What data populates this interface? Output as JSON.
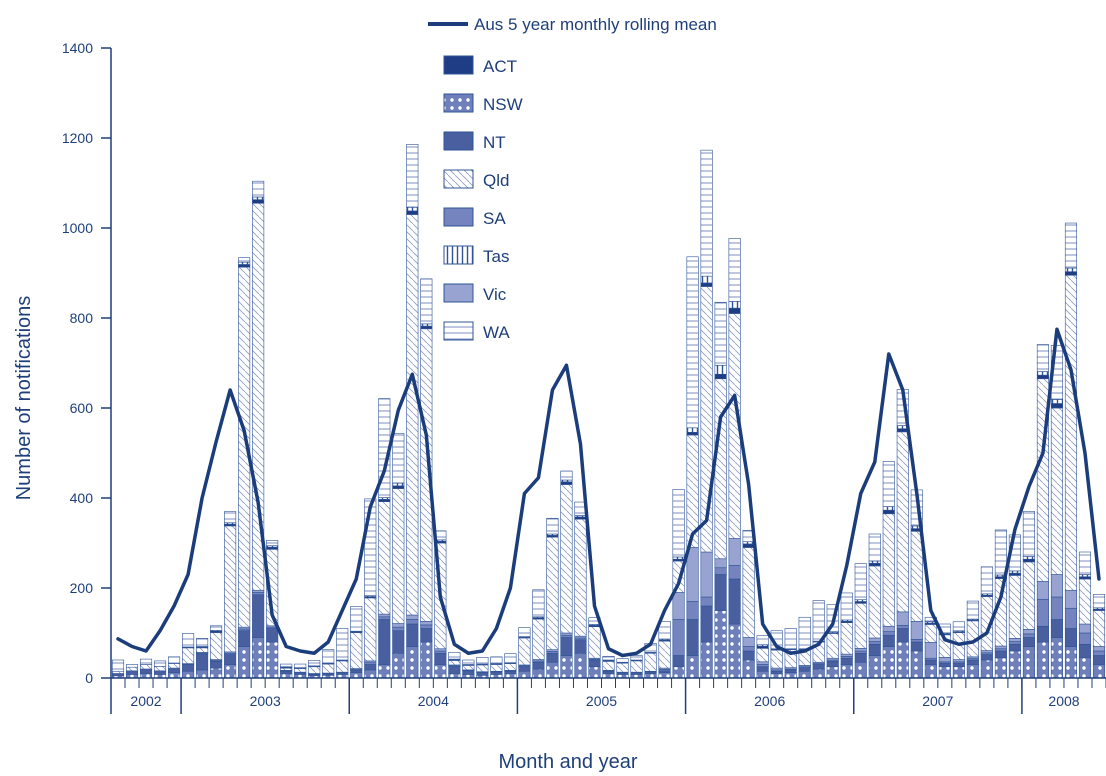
{
  "chart_data": {
    "type": "bar",
    "stacked": true,
    "xlabel": "Month and year",
    "ylabel": "Number of notifications",
    "ylim": [
      0,
      1400
    ],
    "yticks": [
      0,
      200,
      400,
      600,
      800,
      1000,
      1200,
      1400
    ],
    "x_axis_group_labels": [
      "2002",
      "2003",
      "2004",
      "2005",
      "2006",
      "2007",
      "2008"
    ],
    "months_per_year": [
      5,
      12,
      12,
      12,
      12,
      12,
      6
    ],
    "legend_position": "top-center",
    "stack_order": [
      "NSW",
      "NT",
      "SA",
      "Vic",
      "Qld",
      "ACT",
      "Tas",
      "WA"
    ],
    "colors": {
      "axis": "#1f3f7a",
      "line": "#1b3d7c",
      "bar_outline": "#2f5496",
      "NSW": "#6f7fba",
      "NT": "#4a5fa0",
      "SA": "#7584bf",
      "Vic": "#98a3d1",
      "ACT": "#1f3d85"
    },
    "line_series": {
      "name": "Aus 5 year monthly rolling mean",
      "values": [
        87,
        70,
        60,
        105,
        160,
        230,
        400,
        525,
        640,
        550,
        390,
        140,
        70,
        60,
        55,
        80,
        150,
        220,
        380,
        460,
        595,
        675,
        540,
        180,
        75,
        55,
        60,
        110,
        200,
        410,
        445,
        640,
        695,
        520,
        160,
        65,
        50,
        55,
        75,
        150,
        210,
        320,
        350,
        580,
        628,
        430,
        120,
        70,
        55,
        60,
        75,
        120,
        250,
        410,
        480,
        720,
        640,
        410,
        150,
        85,
        75,
        80,
        100,
        180,
        330,
        425,
        500,
        775,
        685,
        500,
        220
      ]
    },
    "series": [
      {
        "name": "ACT",
        "values": [
          0,
          0,
          0,
          0,
          0,
          1,
          2,
          3,
          4,
          6,
          8,
          5,
          2,
          1,
          1,
          1,
          1,
          2,
          3,
          5,
          6,
          8,
          6,
          4,
          2,
          1,
          1,
          1,
          1,
          2,
          3,
          4,
          6,
          5,
          3,
          2,
          1,
          1,
          1,
          2,
          4,
          6,
          8,
          10,
          12,
          8,
          5,
          2,
          1,
          1,
          1,
          2,
          3,
          4,
          6,
          8,
          7,
          6,
          3,
          2,
          2,
          2,
          3,
          4,
          5,
          6,
          8,
          10,
          8,
          5,
          3
        ]
      },
      {
        "name": "NSW",
        "values": [
          5,
          8,
          10,
          8,
          12,
          15,
          18,
          22,
          30,
          70,
          90,
          80,
          10,
          8,
          5,
          6,
          8,
          12,
          18,
          30,
          55,
          70,
          80,
          30,
          10,
          8,
          6,
          8,
          10,
          15,
          20,
          35,
          50,
          55,
          25,
          10,
          8,
          8,
          10,
          12,
          25,
          50,
          80,
          150,
          120,
          40,
          15,
          10,
          12,
          15,
          20,
          25,
          30,
          35,
          50,
          70,
          80,
          60,
          30,
          25,
          25,
          30,
          40,
          45,
          60,
          70,
          80,
          90,
          70,
          45,
          30
        ]
      },
      {
        "name": "NT",
        "values": [
          5,
          8,
          10,
          8,
          10,
          15,
          35,
          15,
          22,
          35,
          95,
          30,
          5,
          3,
          3,
          3,
          3,
          5,
          12,
          100,
          50,
          50,
          30,
          25,
          15,
          8,
          6,
          5,
          5,
          10,
          15,
          20,
          40,
          30,
          15,
          5,
          3,
          3,
          3,
          4,
          25,
          80,
          80,
          80,
          100,
          20,
          10,
          5,
          6,
          8,
          10,
          12,
          14,
          20,
          25,
          25,
          30,
          20,
          10,
          8,
          8,
          10,
          12,
          15,
          15,
          20,
          35,
          40,
          40,
          30,
          20
        ]
      },
      {
        "name": "SA",
        "values": [
          0,
          0,
          0,
          0,
          0,
          1,
          2,
          2,
          3,
          4,
          5,
          3,
          1,
          1,
          1,
          1,
          1,
          2,
          4,
          6,
          8,
          10,
          8,
          5,
          2,
          1,
          1,
          1,
          1,
          2,
          3,
          4,
          5,
          4,
          2,
          1,
          1,
          1,
          1,
          3,
          80,
          40,
          20,
          15,
          30,
          10,
          5,
          3,
          2,
          2,
          2,
          3,
          4,
          5,
          6,
          8,
          7,
          6,
          4,
          3,
          3,
          3,
          4,
          5,
          6,
          8,
          60,
          50,
          45,
          25,
          10
        ]
      },
      {
        "name": "Vic",
        "values": [
          0,
          0,
          0,
          0,
          0,
          1,
          2,
          2,
          3,
          4,
          5,
          3,
          1,
          1,
          1,
          1,
          1,
          2,
          4,
          6,
          8,
          10,
          8,
          5,
          2,
          1,
          1,
          1,
          1,
          2,
          3,
          4,
          5,
          4,
          2,
          1,
          1,
          1,
          1,
          3,
          60,
          120,
          100,
          20,
          60,
          20,
          6,
          4,
          3,
          3,
          3,
          4,
          5,
          6,
          8,
          12,
          30,
          40,
          35,
          10,
          5,
          4,
          5,
          6,
          7,
          10,
          40,
          50,
          40,
          20,
          10
        ]
      },
      {
        "name": "Qld",
        "values": [
          5,
          8,
          10,
          10,
          10,
          35,
          10,
          60,
          280,
          800,
          860,
          170,
          5,
          8,
          15,
          20,
          25,
          80,
          140,
          250,
          300,
          890,
          650,
          235,
          10,
          10,
          15,
          15,
          15,
          60,
          90,
          250,
          330,
          260,
          70,
          20,
          20,
          25,
          40,
          60,
          70,
          250,
          590,
          400,
          500,
          200,
          30,
          40,
          40,
          35,
          45,
          55,
          70,
          100,
          160,
          250,
          400,
          200,
          40,
          50,
          60,
          80,
          120,
          150,
          140,
          150,
          450,
          370,
          700,
          100,
          80
        ]
      },
      {
        "name": "Tas",
        "values": [
          0,
          0,
          0,
          0,
          0,
          1,
          1,
          2,
          3,
          5,
          6,
          3,
          1,
          1,
          1,
          1,
          1,
          1,
          2,
          4,
          6,
          8,
          5,
          3,
          1,
          1,
          1,
          1,
          1,
          1,
          2,
          3,
          4,
          3,
          2,
          1,
          1,
          1,
          1,
          2,
          5,
          10,
          15,
          20,
          15,
          5,
          3,
          1,
          1,
          1,
          1,
          2,
          3,
          4,
          5,
          8,
          7,
          6,
          3,
          2,
          2,
          2,
          3,
          4,
          5,
          6,
          8,
          9,
          8,
          5,
          3
        ]
      },
      {
        "name": "WA",
        "values": [
          25,
          6,
          12,
          12,
          15,
          30,
          18,
          10,
          25,
          10,
          35,
          12,
          6,
          8,
          12,
          30,
          70,
          55,
          215,
          220,
          110,
          140,
          100,
          20,
          15,
          10,
          15,
          15,
          20,
          20,
          60,
          35,
          20,
          30,
          15,
          8,
          8,
          10,
          20,
          40,
          150,
          380,
          280,
          140,
          140,
          25,
          20,
          40,
          45,
          70,
          90,
          60,
          60,
          80,
          60,
          100,
          80,
          80,
          10,
          20,
          20,
          40,
          60,
          100,
          80,
          100,
          60,
          120,
          100,
          50,
          30
        ]
      }
    ]
  }
}
